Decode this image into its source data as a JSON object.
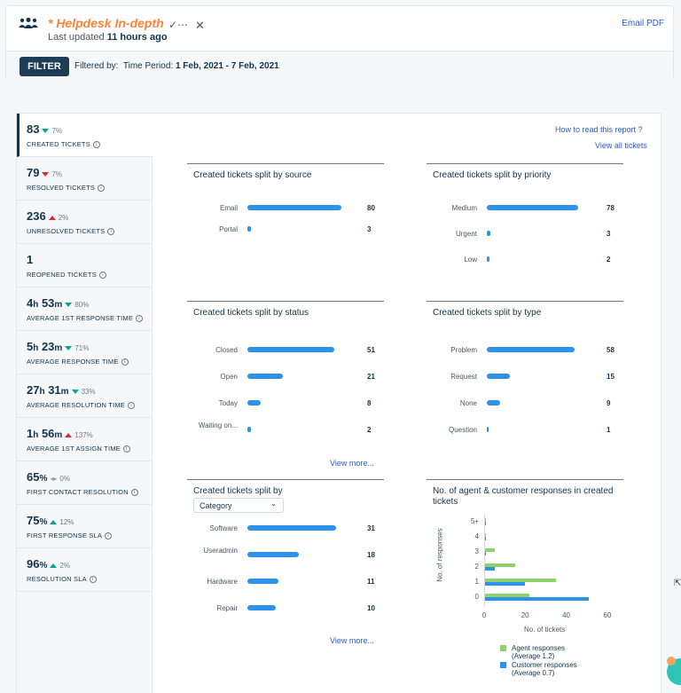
{
  "header": {
    "title": "* Helpdesk In-depth",
    "updated_prefix": "Last updated",
    "updated_value": "11 hours ago",
    "email_pdf": "Email PDF",
    "filter_button": "FILTER",
    "filtered_by": "Filtered by:",
    "time_period_label": "Time Period:",
    "time_period_value": "1 Feb, 2021 - 7 Feb, 2021",
    "check_more_glyph": "✓⋯",
    "close_glyph": "✕"
  },
  "links": {
    "how_to_read": "How to read this report ?",
    "view_all_tickets": "View all tickets",
    "view_more_1": "View more...",
    "view_more_2": "View more..."
  },
  "metrics": [
    {
      "value": "83",
      "change": "7%",
      "direction": "down",
      "color": "green",
      "label": "CREATED TICKETS"
    },
    {
      "value": "79",
      "change": "7%",
      "direction": "down",
      "color": "red",
      "label": "RESOLVED TICKETS"
    },
    {
      "value": "236",
      "change": "2%",
      "direction": "up",
      "color": "red",
      "label": "UNRESOLVED TICKETS"
    },
    {
      "value": "1",
      "change": "",
      "direction": "none",
      "color": "",
      "label": "REOPENED TICKETS"
    },
    {
      "value_parts": [
        "4",
        "h",
        " 53",
        "m"
      ],
      "change": "80%",
      "direction": "down",
      "color": "green",
      "label": "AVERAGE 1ST RESPONSE TIME"
    },
    {
      "value_parts": [
        "5",
        "h",
        " 23",
        "m"
      ],
      "change": "71%",
      "direction": "down",
      "color": "green",
      "label": "AVERAGE RESPONSE TIME"
    },
    {
      "value_parts": [
        "27",
        "h",
        " 31",
        "m"
      ],
      "change": "33%",
      "direction": "down",
      "color": "green",
      "label": "AVERAGE RESOLUTION TIME"
    },
    {
      "value_parts": [
        "1",
        "h",
        " 56",
        "m"
      ],
      "change": "137%",
      "direction": "up",
      "color": "red",
      "label": "AVERAGE 1ST ASSIGN TIME"
    },
    {
      "value_parts": [
        "65",
        "%"
      ],
      "change": "0%",
      "direction": "flat",
      "color": "grey",
      "label": "FIRST CONTACT RESOLUTION"
    },
    {
      "value_parts": [
        "75",
        "%"
      ],
      "change": "12%",
      "direction": "up",
      "color": "green",
      "label": "FIRST RESPONSE SLA"
    },
    {
      "value_parts": [
        "96",
        "%"
      ],
      "change": "2%",
      "direction": "up",
      "color": "green",
      "label": "RESOLUTION SLA"
    }
  ],
  "panels": {
    "source": {
      "title": "Created tickets split by source",
      "rows": [
        {
          "label": "Email",
          "value": 80
        },
        {
          "label": "Portal",
          "value": 3
        }
      ]
    },
    "priority": {
      "title": "Created tickets split by priority",
      "rows": [
        {
          "label": "Medium",
          "value": 78
        },
        {
          "label": "Urgent",
          "value": 3
        },
        {
          "label": "Low",
          "value": 2
        }
      ]
    },
    "status": {
      "title": "Created tickets split by status",
      "rows": [
        {
          "label": "Closed",
          "value": 51
        },
        {
          "label": "Open",
          "value": 21
        },
        {
          "label": "Today",
          "value": 8
        },
        {
          "label": "Waiting on...",
          "value": 2
        }
      ]
    },
    "type": {
      "title": "Created tickets split by type",
      "rows": [
        {
          "label": "Problem",
          "value": 58
        },
        {
          "label": "Request",
          "value": 15
        },
        {
          "label": "None",
          "value": 9
        },
        {
          "label": "Question",
          "value": 1
        }
      ]
    },
    "category": {
      "title": "Created tickets split by",
      "select_value": "Category",
      "rows": [
        {
          "label": "Software",
          "value": 31
        },
        {
          "label": "Useradmin",
          "value": 18
        },
        {
          "label": "Hardware",
          "value": 11
        },
        {
          "label": "Repair",
          "value": 10
        }
      ]
    }
  },
  "chart_data": {
    "type": "bar",
    "orientation": "horizontal",
    "title": "No. of agent & customer responses in created tickets",
    "xlabel": "No. of tickets",
    "ylabel": "No. of responses",
    "categories": [
      "5+",
      "4",
      "3",
      "2",
      "1",
      "0"
    ],
    "x_ticks": [
      "0",
      "20",
      "40",
      "60"
    ],
    "xlim": [
      0,
      60
    ],
    "series": [
      {
        "name": "Agent responses",
        "subtitle": "(Average 1.2)",
        "color": "#8fd16a",
        "values": [
          1,
          0,
          5,
          15,
          35,
          22
        ]
      },
      {
        "name": "Customer responses",
        "subtitle": "(Average 0.7)",
        "color": "#2c92ea",
        "values": [
          1,
          1,
          1,
          5,
          20,
          51
        ]
      }
    ]
  }
}
